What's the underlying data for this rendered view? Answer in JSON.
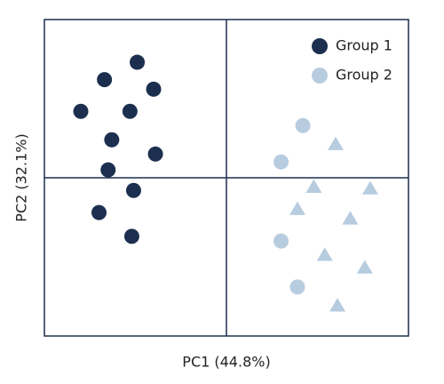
{
  "chart_data": {
    "type": "scatter",
    "xlabel": "PC1 (44.8%)",
    "ylabel": "PC2 (32.1%)",
    "xlim": [
      -1,
      1
    ],
    "ylim": [
      -1,
      1
    ],
    "legend": "upper right",
    "series": [
      {
        "name": "Group 1",
        "color": "#1c2f4f",
        "x": [
          -0.49,
          -0.67,
          -0.4,
          -0.8,
          -0.53,
          -0.63,
          -0.39,
          -0.65,
          -0.51,
          -0.7,
          -0.52
        ],
        "values": [
          0.73,
          0.62,
          0.56,
          0.42,
          0.42,
          0.24,
          0.15,
          0.05,
          -0.08,
          -0.22,
          -0.37
        ],
        "markers": [
          "circle",
          "circle",
          "circle",
          "circle",
          "circle",
          "circle",
          "circle",
          "circle",
          "circle",
          "circle",
          "circle"
        ]
      },
      {
        "name": "Group 2",
        "color": "#b8cce0",
        "x": [
          0.42,
          0.6,
          0.3,
          0.48,
          0.79,
          0.39,
          0.68,
          0.3,
          0.54,
          0.76,
          0.39,
          0.61
        ],
        "values": [
          0.33,
          0.21,
          0.1,
          -0.06,
          -0.07,
          -0.2,
          -0.26,
          -0.4,
          -0.49,
          -0.57,
          -0.69,
          -0.81
        ],
        "markers": [
          "circle",
          "triangle",
          "circle",
          "triangle",
          "triangle",
          "triangle",
          "triangle",
          "circle",
          "triangle",
          "triangle",
          "circle",
          "triangle"
        ]
      }
    ]
  }
}
